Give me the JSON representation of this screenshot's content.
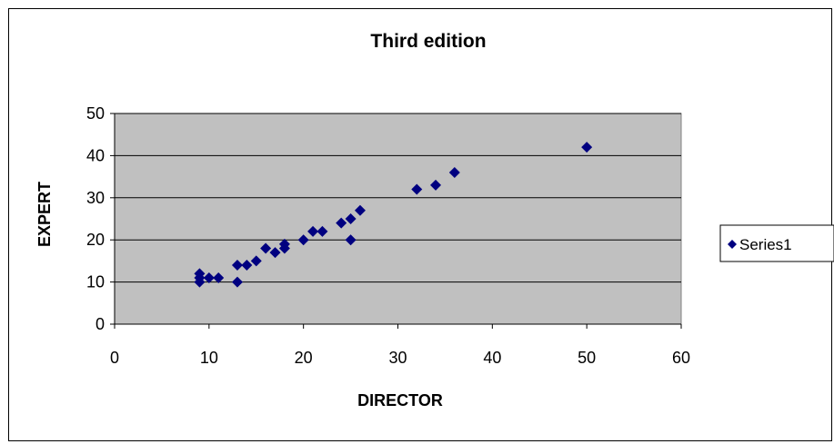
{
  "chart_data": {
    "type": "scatter",
    "title": "Third edition",
    "xlabel": "DIRECTOR",
    "ylabel": "EXPERT",
    "xlim": [
      0,
      60
    ],
    "ylim": [
      0,
      50
    ],
    "xticks": [
      "0",
      "10",
      "20",
      "30",
      "40",
      "50",
      "60"
    ],
    "yticks": [
      "0",
      "10",
      "20",
      "30",
      "40",
      "50"
    ],
    "grid": "horizontal",
    "legend_position": "right",
    "colors": {
      "marker": "#000080",
      "plot_background": "#c0c0c0",
      "grid": "#000000"
    },
    "series": [
      {
        "name": "Series1",
        "points": [
          [
            9,
            10
          ],
          [
            9,
            11
          ],
          [
            9,
            12
          ],
          [
            10,
            11
          ],
          [
            11,
            11
          ],
          [
            13,
            10
          ],
          [
            13,
            14
          ],
          [
            14,
            14
          ],
          [
            15,
            15
          ],
          [
            16,
            18
          ],
          [
            17,
            17
          ],
          [
            18,
            18
          ],
          [
            18,
            19
          ],
          [
            20,
            20
          ],
          [
            21,
            22
          ],
          [
            22,
            22
          ],
          [
            24,
            24
          ],
          [
            25,
            25
          ],
          [
            25,
            20
          ],
          [
            26,
            27
          ],
          [
            32,
            32
          ],
          [
            34,
            33
          ],
          [
            36,
            36
          ],
          [
            50,
            42
          ]
        ]
      }
    ]
  }
}
